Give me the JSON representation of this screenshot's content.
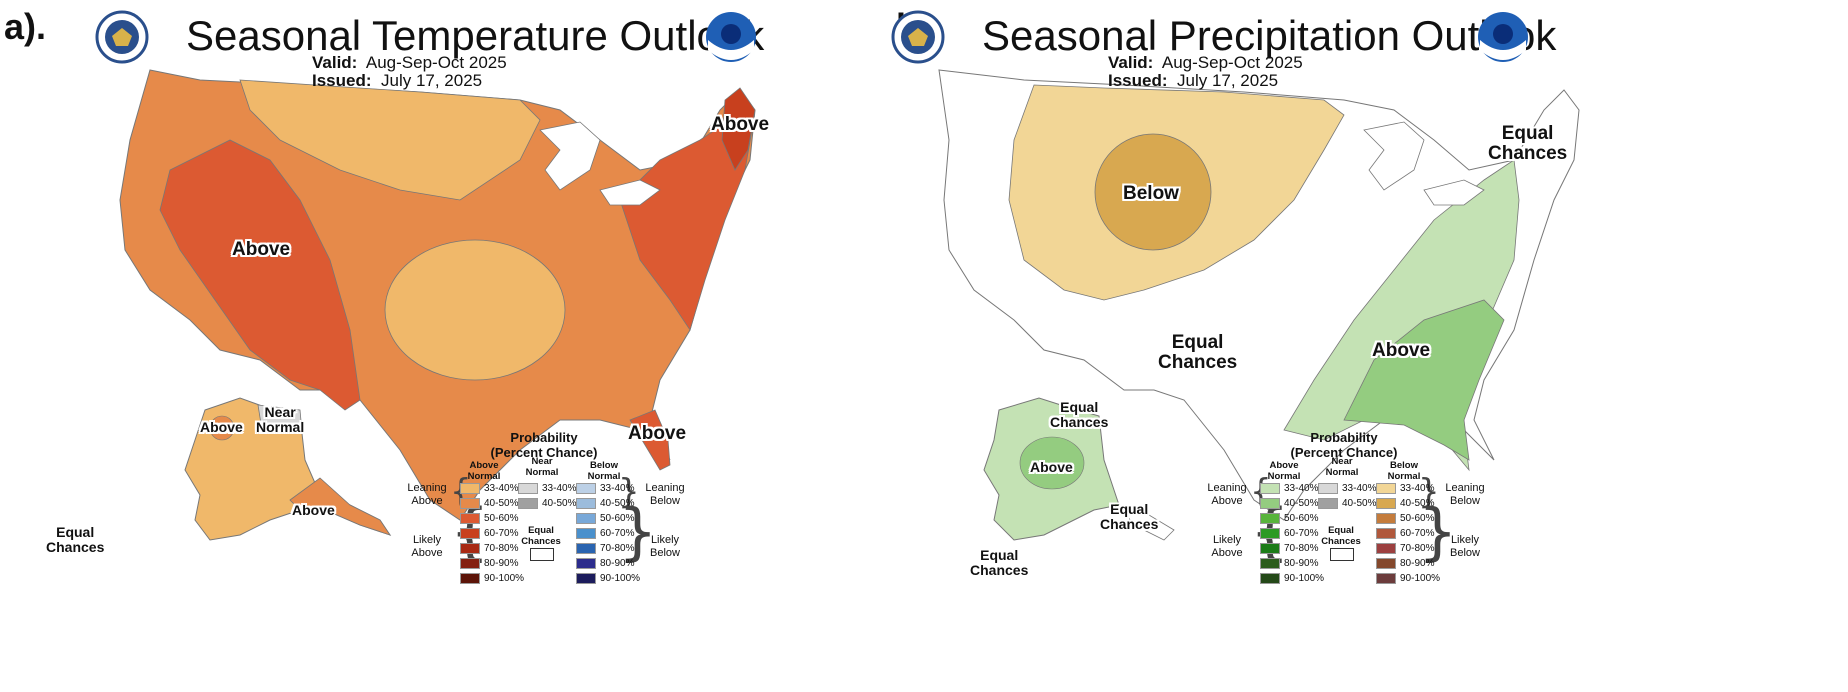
{
  "panels": {
    "a": {
      "panel_label": "a).",
      "title": "Seasonal Temperature Outlook",
      "valid_label": "Valid:",
      "valid_value": "Aug-Sep-Oct 2025",
      "issued_label": "Issued:",
      "issued_value": "July 17, 2025",
      "map_labels": {
        "west_above": "Above",
        "northeast_above": "Above",
        "florida_above": "Above",
        "alaska_above_west": "Above",
        "alaska_near_normal": "Near\nNormal",
        "alaska_above_south": "Above",
        "alaska_equal_chances": "Equal\nChances"
      }
    },
    "b": {
      "panel_label": "b).",
      "title": "Seasonal Precipitation Outlook",
      "valid_label": "Valid:",
      "valid_value": "Aug-Sep-Oct 2025",
      "issued_label": "Issued:",
      "issued_value": "July 17, 2025",
      "map_labels": {
        "plains_below": "Below",
        "northeast_equal_chances": "Equal\nChances",
        "central_equal_chances": "Equal\nChances",
        "southeast_above": "Above",
        "alaska_equal_chances_north": "Equal\nChances",
        "alaska_above": "Above",
        "alaska_equal_chances_se": "Equal\nChances",
        "alaska_equal_chances_sw": "Equal\nChances"
      }
    }
  },
  "legend": {
    "title": "Probability\n(Percent Chance)",
    "col_above": "Above\nNormal",
    "col_near": "Near\nNormal",
    "col_below": "Below\nNormal",
    "leaning_above": "Leaning\nAbove",
    "likely_above": "Likely\nAbove",
    "leaning_below": "Leaning\nBelow",
    "likely_below": "Likely\nBelow",
    "equal_chances": "Equal\nChances",
    "ranges": [
      "33-40%",
      "40-50%",
      "50-60%",
      "60-70%",
      "70-80%",
      "80-90%",
      "90-100%"
    ],
    "near_ranges": [
      "33-40%",
      "40-50%"
    ]
  },
  "colors": {
    "temp_above": [
      "#f0b86a",
      "#e68a4a",
      "#dc5a32",
      "#c8401e",
      "#a82a14",
      "#842010",
      "#5c1408"
    ],
    "temp_below": [
      "#bcd0e6",
      "#9cbcdc",
      "#78a8d8",
      "#4a90cc",
      "#2a64b0",
      "#2c2c8c",
      "#1c1c5c"
    ],
    "precip_above": [
      "#c4e2b4",
      "#94cc80",
      "#58b43c",
      "#2c9a24",
      "#1c7c18",
      "#2c5c1c",
      "#244818"
    ],
    "precip_below": [
      "#f2d696",
      "#d8a850",
      "#c47c3c",
      "#b0583c",
      "#9c4040",
      "#84482c",
      "#6c3c3c"
    ],
    "near_normal": [
      "#d8d8d8",
      "#a0a0a0"
    ]
  }
}
